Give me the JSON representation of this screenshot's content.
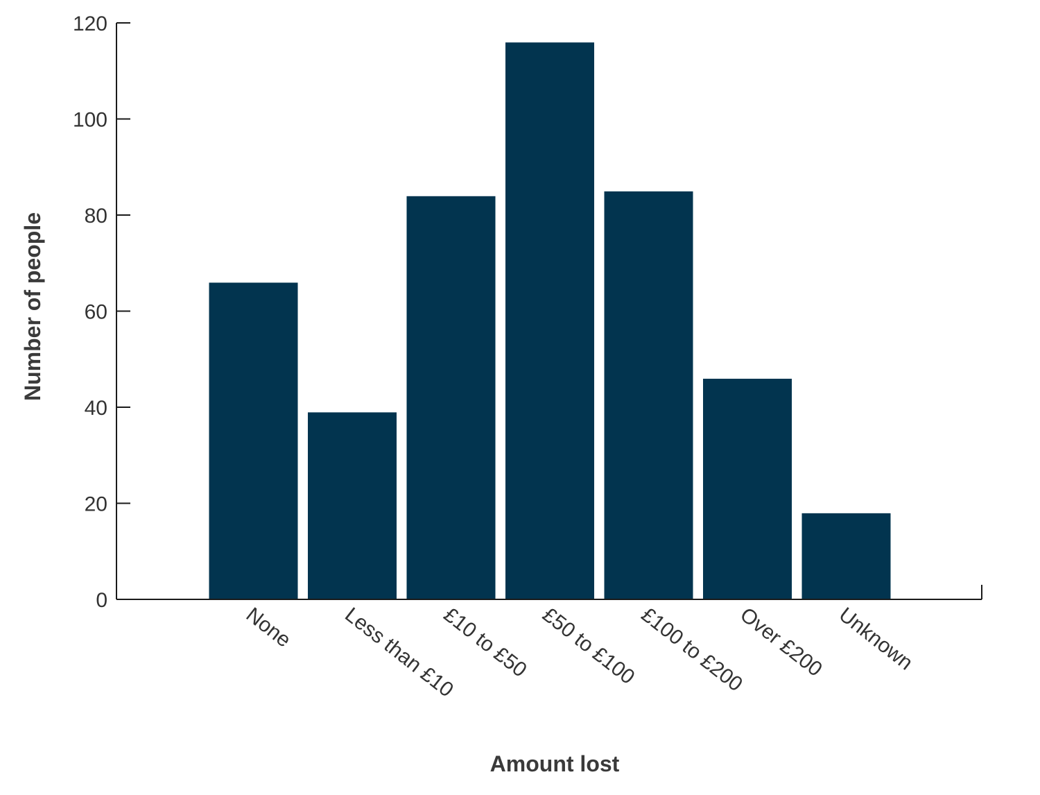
{
  "chart_data": {
    "type": "bar",
    "categories": [
      "None",
      "Less than £10",
      "£10 to £50",
      "£50 to £100",
      "£100 to £200",
      "Over £200",
      "Unknown"
    ],
    "values": [
      66,
      39,
      84,
      116,
      85,
      46,
      18
    ],
    "title": "",
    "xlabel": "Amount lost",
    "ylabel": "Number of people",
    "ylim": [
      0,
      120
    ],
    "yticks": [
      0,
      20,
      40,
      60,
      80,
      100,
      120
    ],
    "grid": false,
    "bar_color": "#02344f"
  }
}
